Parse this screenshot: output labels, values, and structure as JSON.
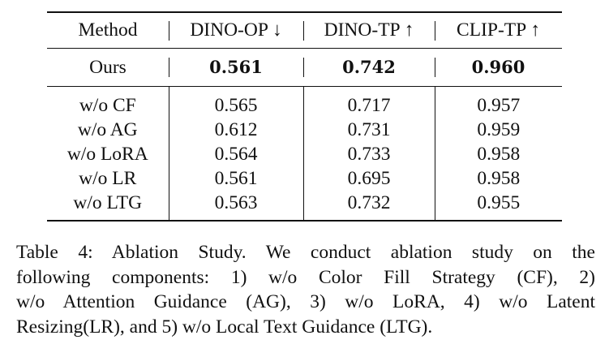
{
  "table": {
    "headers": [
      "Method",
      "DINO-OP ↓",
      "DINO-TP ↑",
      "CLIP-TP ↑"
    ],
    "ours": {
      "method": "Ours",
      "values": [
        "0.561",
        "0.742",
        "0.960"
      ]
    },
    "rows": [
      {
        "method": "w/o CF",
        "values": [
          "0.565",
          "0.717",
          "0.957"
        ]
      },
      {
        "method": "w/o AG",
        "values": [
          "0.612",
          "0.731",
          "0.959"
        ]
      },
      {
        "method": "w/o LoRA",
        "values": [
          "0.564",
          "0.733",
          "0.958"
        ]
      },
      {
        "method": "w/o LR",
        "values": [
          "0.561",
          "0.695",
          "0.958"
        ]
      },
      {
        "method": "w/o LTG",
        "values": [
          "0.563",
          "0.732",
          "0.955"
        ]
      }
    ]
  },
  "caption": {
    "lines": [
      "Table 4: Ablation Study. We conduct ablation study on the",
      "following components: 1) w/o Color Fill Strategy (CF), 2)",
      "w/o Attention Guidance (AG), 3) w/o LoRA, 4) w/o Latent",
      "Resizing(LR), and 5) w/o Local Text Guidance (LTG)."
    ]
  }
}
